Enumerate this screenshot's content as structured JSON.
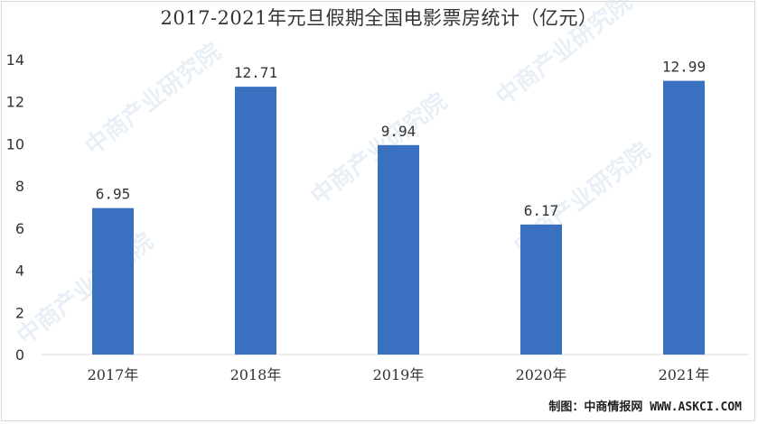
{
  "chart_data": {
    "type": "bar",
    "title": "2017-2021年元旦假期全国电影票房统计（亿元）",
    "categories": [
      "2017年",
      "2018年",
      "2019年",
      "2020年",
      "2021年"
    ],
    "values": [
      6.95,
      12.71,
      9.94,
      6.17,
      12.99
    ],
    "value_labels": [
      "6.95",
      "12.71",
      "9.94",
      "6.17",
      "12.99"
    ],
    "y_ticks": [
      "0",
      "2",
      "4",
      "6",
      "8",
      "10",
      "12",
      "14"
    ],
    "ylim": [
      0,
      14
    ],
    "grid": false,
    "legend": "none",
    "bar_color": "#3a70c0"
  },
  "source_text": "制图：中商情报网 WWW.ASKCI.COM",
  "watermark_text": "中商产业研究院"
}
